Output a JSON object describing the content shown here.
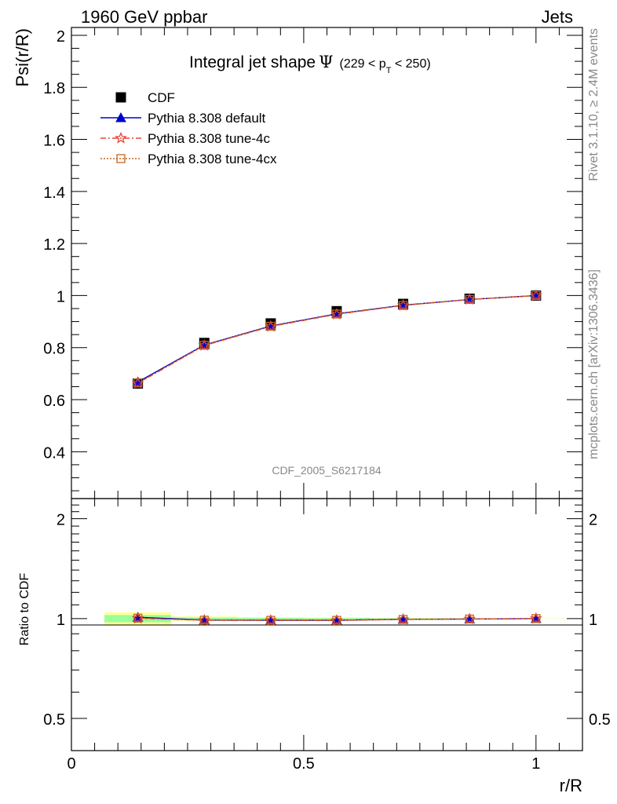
{
  "header": {
    "left": "1960 GeV ppbar",
    "right": "Jets"
  },
  "side_labels": {
    "rivet": "Rivet 3.1.10, ≥ 2.4M events",
    "mcplots": "mcplots.cern.ch [arXiv:1306.3436]"
  },
  "chart_data": [
    {
      "type": "line",
      "title": "Integral jet shape",
      "title_symbol": "Ψ",
      "title_range": {
        "prefix": "(229 < p",
        "sub": "T",
        "suffix": " < 250)"
      },
      "xlabel": "r/R",
      "ylabel": "Psi(r/R)",
      "watermark": "CDF_2005_S6217184",
      "xlim": [
        0,
        1.1
      ],
      "ylim": [
        0.22,
        2.03
      ],
      "y_ticks": [
        0.4,
        0.6,
        0.8,
        1,
        1.2,
        1.4,
        1.6,
        1.8,
        2
      ],
      "y_tick_labels": [
        "0.4",
        "0.6",
        "0.8",
        "1",
        "1.2",
        "1.4",
        "1.6",
        "1.8",
        "2"
      ],
      "x": [
        0.143,
        0.286,
        0.429,
        0.571,
        0.714,
        0.857,
        1.0
      ],
      "legend_position": "top-left",
      "series": [
        {
          "name": "CDF",
          "values": [
            0.662,
            0.818,
            0.893,
            0.94,
            0.968,
            0.988,
            1.0
          ],
          "color": "#000000",
          "marker": "square"
        },
        {
          "name": "Pythia 8.308 default",
          "values": [
            0.668,
            0.81,
            0.883,
            0.93,
            0.963,
            0.985,
            1.0
          ],
          "color": "#0000cc",
          "marker": "triangle"
        },
        {
          "name": "Pythia 8.308 tune-4c",
          "values": [
            0.663,
            0.808,
            0.881,
            0.928,
            0.962,
            0.985,
            1.0
          ],
          "color": "#e8463a",
          "marker": "star"
        },
        {
          "name": "Pythia 8.308 tune-4cx",
          "values": [
            0.664,
            0.809,
            0.882,
            0.929,
            0.962,
            0.985,
            1.0
          ],
          "color": "#c8631a",
          "marker": "open-square"
        }
      ]
    },
    {
      "type": "line",
      "ylabel": "Ratio to CDF",
      "xlabel": "r/R",
      "xlim": [
        0,
        1.1
      ],
      "ylim": [
        0.4,
        2.3
      ],
      "y_scale": "log",
      "y_ticks": [
        0.5,
        1,
        2
      ],
      "y_tick_labels": [
        "0.5",
        "1",
        "2"
      ],
      "x_ticks": [
        0,
        0.5,
        1
      ],
      "x_tick_labels": [
        "0",
        "0.5",
        "1"
      ],
      "x": [
        0.143,
        0.286,
        0.429,
        0.571,
        0.714,
        0.857,
        1.0
      ],
      "bands": [
        {
          "x_low": 0.071,
          "x_high": 0.214,
          "total_low": 0.955,
          "total_high": 1.045,
          "stat_low": 0.975,
          "stat_high": 1.025
        },
        {
          "x_low": 0.214,
          "x_high": 0.357,
          "total_low": 0.985,
          "total_high": 1.015,
          "stat_low": 0.993,
          "stat_high": 1.007
        },
        {
          "x_low": 0.357,
          "x_high": 0.5,
          "total_low": 0.99,
          "total_high": 1.01,
          "stat_low": 0.995,
          "stat_high": 1.005
        },
        {
          "x_low": 0.5,
          "x_high": 0.643,
          "total_low": 0.992,
          "total_high": 1.008,
          "stat_low": 0.996,
          "stat_high": 1.004
        },
        {
          "x_low": 0.643,
          "x_high": 0.786,
          "total_low": 0.995,
          "total_high": 1.005,
          "stat_low": 0.998,
          "stat_high": 1.002
        },
        {
          "x_low": 0.786,
          "x_high": 0.929,
          "total_low": 0.997,
          "total_high": 1.003,
          "stat_low": 0.999,
          "stat_high": 1.001
        },
        {
          "x_low": 0.929,
          "x_high": 1.071,
          "total_low": 0.999,
          "total_high": 1.001,
          "stat_low": 0.9995,
          "stat_high": 1.0005
        }
      ],
      "series": [
        {
          "name": "Pythia 8.308 default",
          "values": [
            1.009,
            0.99,
            0.989,
            0.989,
            0.995,
            0.997,
            1.0
          ],
          "color": "#0000cc",
          "marker": "triangle"
        },
        {
          "name": "Pythia 8.308 tune-4c",
          "values": [
            1.002,
            0.988,
            0.987,
            0.987,
            0.994,
            0.997,
            1.0
          ],
          "color": "#e8463a",
          "marker": "star"
        },
        {
          "name": "Pythia 8.308 tune-4cx",
          "values": [
            1.003,
            0.989,
            0.988,
            0.988,
            0.994,
            0.997,
            1.0
          ],
          "color": "#c8631a",
          "marker": "open-square"
        }
      ]
    }
  ]
}
